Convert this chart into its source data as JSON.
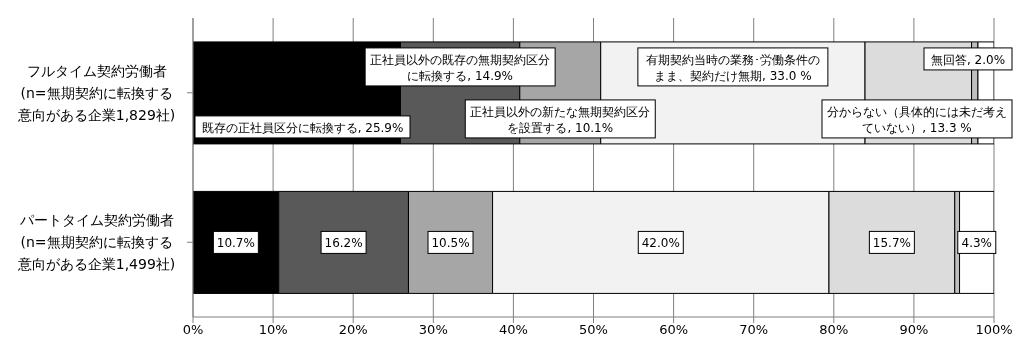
{
  "chart_data": {
    "type": "bar",
    "orientation": "horizontal",
    "stacked": true,
    "categories": [
      "フルタイム契約労働者(n=無期契約に転換する意向がある企業1,829社)",
      "パートタイム契約労働者(n=無期契約に転換する意向がある企業1,499社)"
    ],
    "series": [
      {
        "color": "#000000",
        "values": [
          25.9,
          10.7
        ],
        "value_labels": [
          "既存の正社員区分に転換する, 25.9%",
          "10.7%"
        ]
      },
      {
        "color": "#595959",
        "values": [
          14.9,
          16.2
        ],
        "value_labels": [
          "正社員以外の既存の無期契約区分に転換する, 14.9%",
          "16.2%"
        ]
      },
      {
        "color": "#a6a6a6",
        "values": [
          10.1,
          10.5
        ],
        "value_labels": [
          "正社員以外の新たな無期契約区分を設置する, 10.1%",
          "10.5%"
        ]
      },
      {
        "color": "#f2f2f2",
        "values": [
          33.0,
          42.0
        ],
        "value_labels": [
          "有期契約当時の業務･労働条件のまま、契約だけ無期, 33.0 %",
          "42.0%"
        ]
      },
      {
        "color": "#dcdcdc",
        "values": [
          13.3,
          15.7
        ],
        "value_labels": [
          "分からない（具体的には未だ考えていない）, 13.3 %",
          "15.7%"
        ]
      },
      {
        "color": "#bfbfbf",
        "values": [
          0.8,
          0.6
        ],
        "value_labels": [
          null,
          null
        ]
      },
      {
        "color": "#ffffff",
        "values": [
          2.0,
          4.3
        ],
        "value_labels": [
          "無回答, 2.0%",
          "4.3%"
        ]
      }
    ],
    "xlim": [
      0,
      100
    ],
    "xticks": [
      {
        "value": 0,
        "label": "0%"
      },
      {
        "value": 10,
        "label": "10%"
      },
      {
        "value": 20,
        "label": "20%"
      },
      {
        "value": 30,
        "label": "30%"
      },
      {
        "value": 40,
        "label": "40%"
      },
      {
        "value": 50,
        "label": "50%"
      },
      {
        "value": 60,
        "label": "60%"
      },
      {
        "value": 70,
        "label": "70%"
      },
      {
        "value": 80,
        "label": "80%"
      },
      {
        "value": 90,
        "label": "90%"
      },
      {
        "value": 100,
        "label": "100%"
      }
    ],
    "grid": "x",
    "legend": false
  }
}
